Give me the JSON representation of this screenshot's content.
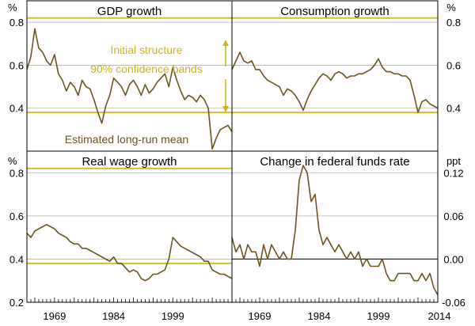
{
  "colors": {
    "series": "#6b5420",
    "band": "#d2c02a",
    "annotation": "#c9b51c",
    "grid": "#b5b5b5",
    "frame": "#000000",
    "text": "#000000"
  },
  "units": {
    "left": "%",
    "right_top": "%",
    "right_bottom": "ppt"
  },
  "x_ticks": [
    "1969",
    "1984",
    "1999",
    "2014"
  ],
  "chart_data": [
    {
      "type": "line",
      "title": "GDP growth",
      "x_range": [
        1962,
        2014
      ],
      "ylim": [
        0.2,
        0.9
      ],
      "yticks": [
        0.4,
        0.6,
        0.8
      ],
      "band_upper": 0.82,
      "band_lower": 0.38,
      "annotations": {
        "band_label_1": "Initial structure",
        "band_label_2": "90% confidence bands",
        "mean_label": "Estimated long-run mean"
      },
      "series": [
        {
          "name": "GDP growth",
          "x": [
            1962,
            1963,
            1964,
            1965,
            1966,
            1967,
            1968,
            1969,
            1970,
            1971,
            1972,
            1973,
            1974,
            1975,
            1976,
            1977,
            1978,
            1979,
            1980,
            1981,
            1982,
            1983,
            1984,
            1985,
            1986,
            1987,
            1988,
            1989,
            1990,
            1991,
            1992,
            1993,
            1994,
            1995,
            1996,
            1997,
            1998,
            1999,
            2000,
            2001,
            2002,
            2003,
            2004,
            2005,
            2006,
            2007,
            2008,
            2009,
            2010,
            2011,
            2012,
            2013,
            2014
          ],
          "values": [
            0.58,
            0.64,
            0.77,
            0.68,
            0.66,
            0.62,
            0.6,
            0.65,
            0.56,
            0.53,
            0.48,
            0.52,
            0.5,
            0.46,
            0.53,
            0.5,
            0.49,
            0.44,
            0.38,
            0.33,
            0.41,
            0.46,
            0.54,
            0.52,
            0.5,
            0.46,
            0.51,
            0.53,
            0.5,
            0.46,
            0.51,
            0.47,
            0.49,
            0.52,
            0.54,
            0.56,
            0.5,
            0.59,
            0.53,
            0.48,
            0.44,
            0.46,
            0.45,
            0.43,
            0.46,
            0.44,
            0.4,
            0.21,
            0.26,
            0.3,
            0.31,
            0.32,
            0.29
          ]
        }
      ]
    },
    {
      "type": "line",
      "title": "Consumption growth",
      "x_range": [
        1962,
        2014
      ],
      "ylim": [
        0.2,
        0.9
      ],
      "yticks": [
        0.4,
        0.6,
        0.8
      ],
      "band_upper": 0.82,
      "band_lower": 0.38,
      "series": [
        {
          "name": "Consumption growth",
          "x": [
            1962,
            1963,
            1964,
            1965,
            1966,
            1967,
            1968,
            1969,
            1970,
            1971,
            1972,
            1973,
            1974,
            1975,
            1976,
            1977,
            1978,
            1979,
            1980,
            1981,
            1982,
            1983,
            1984,
            1985,
            1986,
            1987,
            1988,
            1989,
            1990,
            1991,
            1992,
            1993,
            1994,
            1995,
            1996,
            1997,
            1998,
            1999,
            2000,
            2001,
            2002,
            2003,
            2004,
            2005,
            2006,
            2007,
            2008,
            2009,
            2010,
            2011,
            2012,
            2013,
            2014
          ],
          "values": [
            0.58,
            0.62,
            0.66,
            0.62,
            0.61,
            0.62,
            0.58,
            0.58,
            0.55,
            0.53,
            0.52,
            0.51,
            0.5,
            0.46,
            0.49,
            0.48,
            0.46,
            0.43,
            0.39,
            0.44,
            0.48,
            0.51,
            0.54,
            0.56,
            0.55,
            0.53,
            0.56,
            0.57,
            0.56,
            0.54,
            0.55,
            0.55,
            0.56,
            0.56,
            0.57,
            0.58,
            0.6,
            0.63,
            0.59,
            0.57,
            0.57,
            0.56,
            0.56,
            0.55,
            0.55,
            0.53,
            0.46,
            0.38,
            0.43,
            0.44,
            0.42,
            0.41,
            0.4
          ]
        }
      ]
    },
    {
      "type": "line",
      "title": "Real wage growth",
      "x_range": [
        1962,
        2014
      ],
      "ylim": [
        0.2,
        0.9
      ],
      "yticks": [
        0.2,
        0.4,
        0.6,
        0.8
      ],
      "band_upper": 0.82,
      "band_lower": 0.38,
      "series": [
        {
          "name": "Real wage growth",
          "x": [
            1962,
            1963,
            1964,
            1965,
            1966,
            1967,
            1968,
            1969,
            1970,
            1971,
            1972,
            1973,
            1974,
            1975,
            1976,
            1977,
            1978,
            1979,
            1980,
            1981,
            1982,
            1983,
            1984,
            1985,
            1986,
            1987,
            1988,
            1989,
            1990,
            1991,
            1992,
            1993,
            1994,
            1995,
            1996,
            1997,
            1998,
            1999,
            2000,
            2001,
            2002,
            2003,
            2004,
            2005,
            2006,
            2007,
            2008,
            2009,
            2010,
            2011,
            2012,
            2013,
            2014
          ],
          "values": [
            0.52,
            0.5,
            0.53,
            0.54,
            0.55,
            0.56,
            0.55,
            0.54,
            0.52,
            0.51,
            0.5,
            0.48,
            0.47,
            0.47,
            0.45,
            0.45,
            0.44,
            0.43,
            0.42,
            0.41,
            0.4,
            0.39,
            0.41,
            0.38,
            0.38,
            0.36,
            0.34,
            0.35,
            0.34,
            0.31,
            0.3,
            0.31,
            0.33,
            0.33,
            0.34,
            0.35,
            0.4,
            0.5,
            0.48,
            0.46,
            0.45,
            0.44,
            0.43,
            0.42,
            0.41,
            0.39,
            0.39,
            0.35,
            0.34,
            0.33,
            0.33,
            0.32,
            0.31
          ]
        }
      ]
    },
    {
      "type": "line",
      "title": "Change in federal funds rate",
      "x_range": [
        1962,
        2014
      ],
      "ylim": [
        -0.06,
        0.15
      ],
      "yticks": [
        -0.06,
        0.0,
        0.06,
        0.12
      ],
      "tick_labels": [
        "-0.06",
        "0.00",
        "0.06",
        "0.12"
      ],
      "zero_line": 0.0,
      "series": [
        {
          "name": "Change in federal funds rate",
          "x": [
            1962,
            1963,
            1964,
            1965,
            1966,
            1967,
            1968,
            1969,
            1970,
            1971,
            1972,
            1973,
            1974,
            1975,
            1976,
            1977,
            1978,
            1979,
            1980,
            1981,
            1982,
            1983,
            1984,
            1985,
            1986,
            1987,
            1988,
            1989,
            1990,
            1991,
            1992,
            1993,
            1994,
            1995,
            1996,
            1997,
            1998,
            1999,
            2000,
            2001,
            2002,
            2003,
            2004,
            2005,
            2006,
            2007,
            2008,
            2009,
            2010,
            2011,
            2012,
            2013,
            2014
          ],
          "values": [
            0.03,
            0.01,
            0.02,
            0.0,
            0.02,
            0.01,
            0.01,
            -0.01,
            0.02,
            0.0,
            0.02,
            0.01,
            0.0,
            0.01,
            0.0,
            0.0,
            0.04,
            0.11,
            0.13,
            0.12,
            0.08,
            0.09,
            0.04,
            0.02,
            0.03,
            0.02,
            0.01,
            0.02,
            0.01,
            0.0,
            0.01,
            0.0,
            0.01,
            -0.01,
            0.0,
            -0.01,
            -0.01,
            -0.01,
            0.0,
            -0.02,
            -0.03,
            -0.03,
            -0.02,
            -0.02,
            -0.02,
            -0.02,
            -0.03,
            -0.03,
            -0.02,
            -0.03,
            -0.02,
            -0.04,
            -0.05
          ]
        }
      ]
    }
  ]
}
